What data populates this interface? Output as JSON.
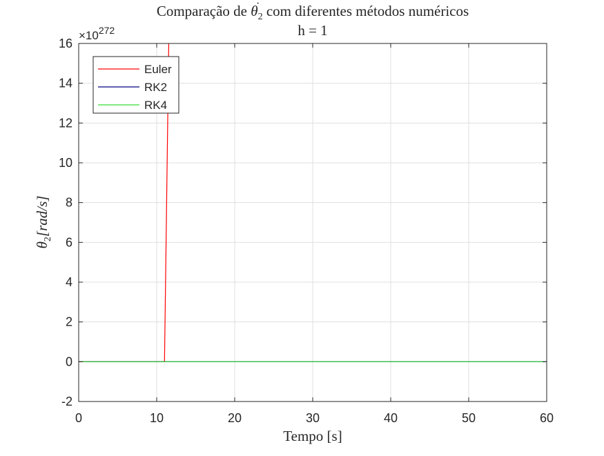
{
  "chart_data": {
    "type": "line",
    "title": "Comparação de θ̇₂ com diferentes métodos numéricos",
    "title_parts": {
      "before": "Comparação de ",
      "symbol": "θ",
      "subscript": "2",
      "after": " com diferentes métodos numéricos"
    },
    "subtitle": "h = 1",
    "xlabel": "Tempo [s]",
    "ylabel": "θ̇₂[rad/s]",
    "ylabel_parts": {
      "symbol": "θ",
      "subscript": "2",
      "rest": "[rad/s]"
    },
    "y_exponent": {
      "base": "×10",
      "power": "272"
    },
    "xlim": [
      0,
      60
    ],
    "ylim": [
      -2,
      16
    ],
    "xticks": [
      0,
      10,
      20,
      30,
      40,
      50,
      60
    ],
    "yticks": [
      -2,
      0,
      2,
      4,
      6,
      8,
      10,
      12,
      14,
      16
    ],
    "grid": true,
    "legend_position": "top-left",
    "series": [
      {
        "name": "Euler",
        "color": "#ff0000",
        "x": [
          0,
          1,
          2,
          3,
          4,
          5,
          6,
          7,
          8,
          9,
          10,
          11,
          12
        ],
        "y": [
          0,
          0,
          0,
          0,
          0,
          0,
          0,
          0,
          0,
          0,
          0,
          0,
          29.4
        ]
      },
      {
        "name": "RK2",
        "color": "#000080",
        "x": [
          0,
          60
        ],
        "y": [
          0,
          0
        ]
      },
      {
        "name": "RK4",
        "color": "#33dd33",
        "x": [
          0,
          60
        ],
        "y": [
          0,
          0
        ]
      }
    ]
  }
}
